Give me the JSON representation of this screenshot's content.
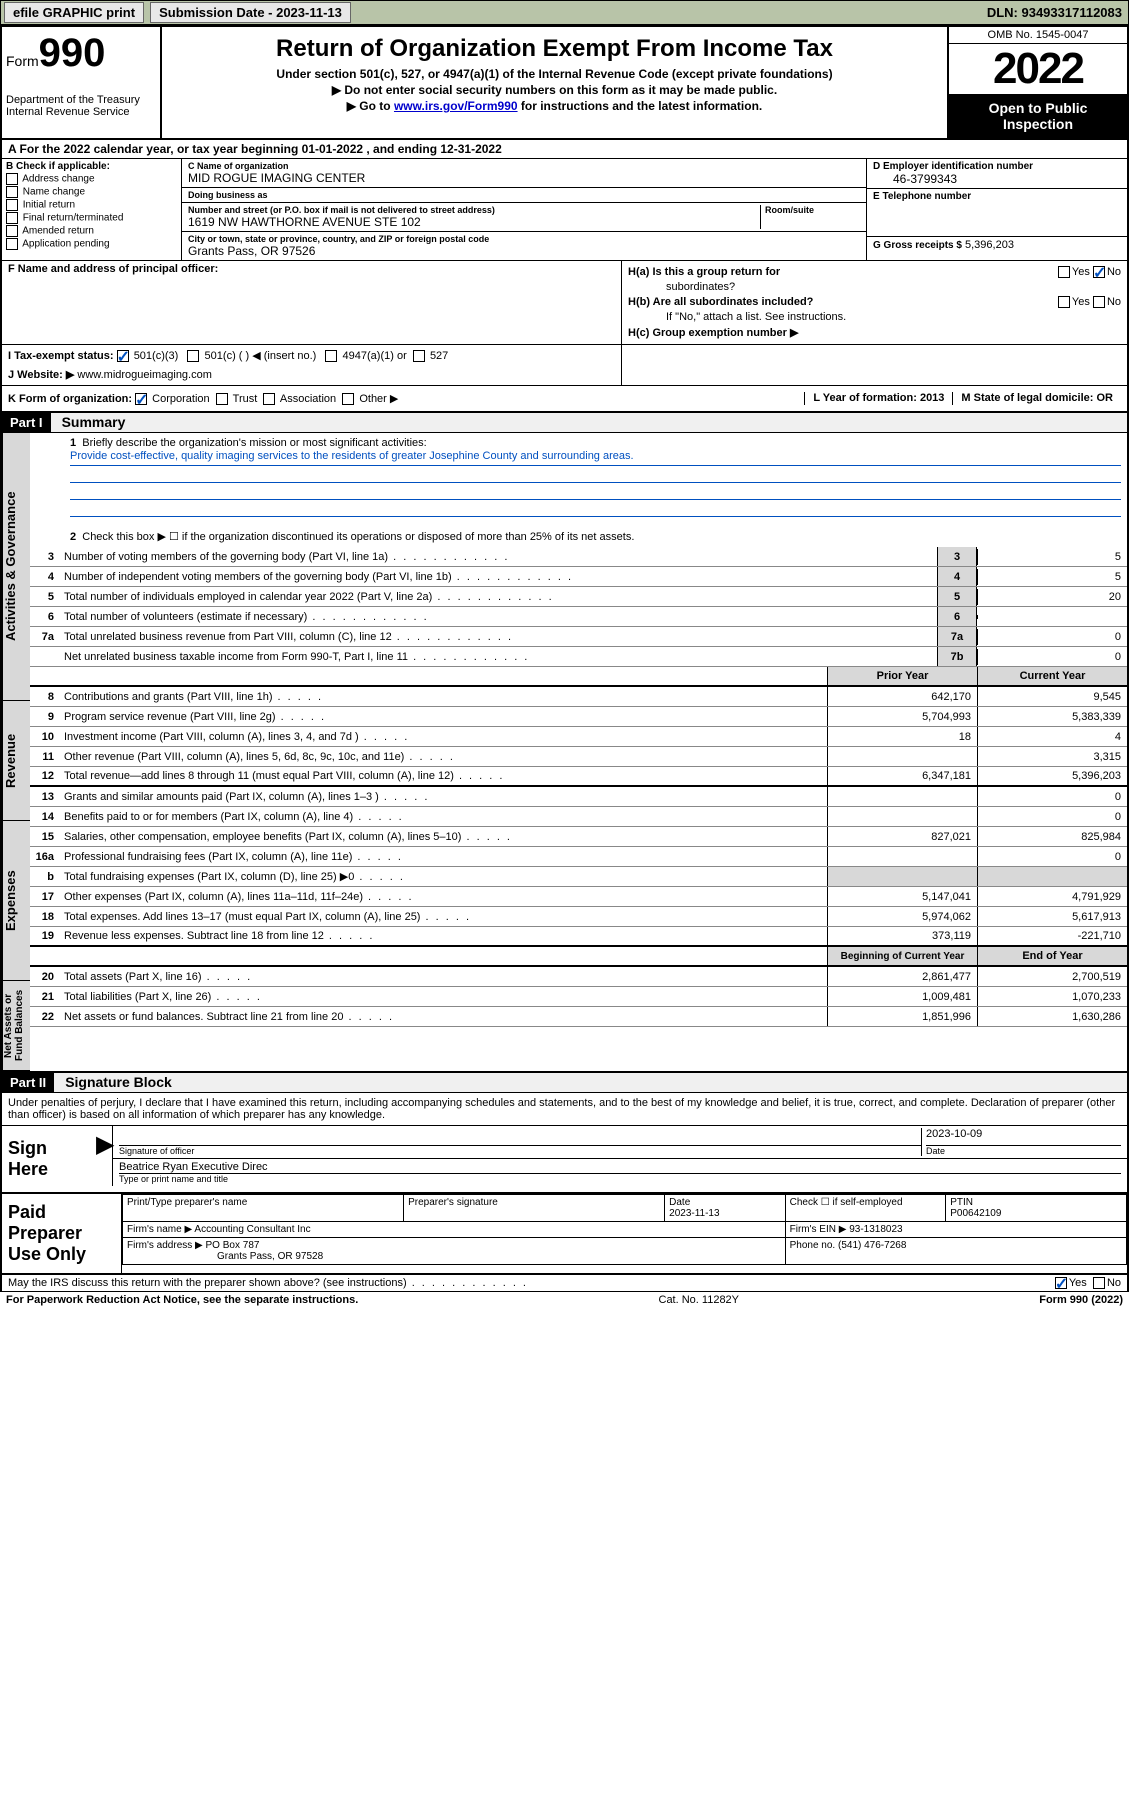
{
  "topbar": {
    "efile": "efile GRAPHIC print",
    "subdate_label": "Submission Date - 2023-11-13",
    "dln": "DLN: 93493317112083"
  },
  "header": {
    "form_label": "Form",
    "form_num": "990",
    "dept": "Department of the Treasury",
    "irs": "Internal Revenue Service",
    "title": "Return of Organization Exempt From Income Tax",
    "subtitle": "Under section 501(c), 527, or 4947(a)(1) of the Internal Revenue Code (except private foundations)",
    "arrow1": "▶ Do not enter social security numbers on this form as it may be made public.",
    "arrow2_pre": "▶ Go to ",
    "arrow2_link": "www.irs.gov/Form990",
    "arrow2_post": " for instructions and the latest information.",
    "omb": "OMB No. 1545-0047",
    "year": "2022",
    "open1": "Open to Public",
    "open2": "Inspection"
  },
  "row_a": "A For the 2022 calendar year, or tax year beginning 01-01-2022   , and ending 12-31-2022",
  "box_b": {
    "label": "B Check if applicable:",
    "items": [
      "Address change",
      "Name change",
      "Initial return",
      "Final return/terminated",
      "Amended return",
      "Application pending"
    ]
  },
  "box_c": {
    "name_label": "C Name of organization",
    "name": "MID ROGUE IMAGING CENTER",
    "dba_label": "Doing business as",
    "dba": "",
    "addr_label": "Number and street (or P.O. box if mail is not delivered to street address)",
    "room_label": "Room/suite",
    "addr": "1619 NW HAWTHORNE AVENUE STE 102",
    "city_label": "City or town, state or province, country, and ZIP or foreign postal code",
    "city": "Grants Pass, OR  97526"
  },
  "box_d": {
    "label": "D Employer identification number",
    "val": "46-3799343"
  },
  "box_e": {
    "label": "E Telephone number",
    "val": ""
  },
  "box_g": {
    "label": "G Gross receipts $",
    "val": "5,396,203"
  },
  "box_f": {
    "label": "F Name and address of principal officer:"
  },
  "box_h": {
    "ha": "H(a)  Is this a group return for",
    "ha2": "subordinates?",
    "hb": "H(b)  Are all subordinates included?",
    "hb_note": "If \"No,\" attach a list. See instructions.",
    "hc": "H(c)  Group exemption number ▶",
    "yes": "Yes",
    "no": "No"
  },
  "box_i": {
    "label": "I   Tax-exempt status:",
    "opt1": "501(c)(3)",
    "opt2": "501(c) (  ) ◀ (insert no.)",
    "opt3": "4947(a)(1) or",
    "opt4": "527"
  },
  "box_j": {
    "label": "J   Website: ▶",
    "val": "www.midrogueimaging.com"
  },
  "box_k": {
    "label": "K Form of organization:",
    "opts": [
      "Corporation",
      "Trust",
      "Association",
      "Other ▶"
    ]
  },
  "box_l": {
    "label": "L Year of formation: 2013"
  },
  "box_m": {
    "label": "M State of legal domicile: OR"
  },
  "part1": {
    "header": "Part I",
    "title": "Summary",
    "line1": "Briefly describe the organization's mission or most significant activities:",
    "mission": "Provide cost-effective, quality imaging services to the residents of greater Josephine County and surrounding areas.",
    "line2": "Check this box ▶ ☐ if the organization discontinued its operations or disposed of more than 25% of its net assets.",
    "rows_gov": [
      {
        "n": "3",
        "d": "Number of voting members of the governing body (Part VI, line 1a)",
        "box": "3",
        "v": "5"
      },
      {
        "n": "4",
        "d": "Number of independent voting members of the governing body (Part VI, line 1b)",
        "box": "4",
        "v": "5"
      },
      {
        "n": "5",
        "d": "Total number of individuals employed in calendar year 2022 (Part V, line 2a)",
        "box": "5",
        "v": "20"
      },
      {
        "n": "6",
        "d": "Total number of volunteers (estimate if necessary)",
        "box": "6",
        "v": ""
      },
      {
        "n": "7a",
        "d": "Total unrelated business revenue from Part VIII, column (C), line 12",
        "box": "7a",
        "v": "0"
      },
      {
        "n": "",
        "d": "Net unrelated business taxable income from Form 990-T, Part I, line 11",
        "box": "7b",
        "v": "0"
      }
    ],
    "hdr_prior": "Prior Year",
    "hdr_current": "Current Year",
    "rows_rev": [
      {
        "n": "8",
        "d": "Contributions and grants (Part VIII, line 1h)",
        "p": "642,170",
        "c": "9,545"
      },
      {
        "n": "9",
        "d": "Program service revenue (Part VIII, line 2g)",
        "p": "5,704,993",
        "c": "5,383,339"
      },
      {
        "n": "10",
        "d": "Investment income (Part VIII, column (A), lines 3, 4, and 7d )",
        "p": "18",
        "c": "4"
      },
      {
        "n": "11",
        "d": "Other revenue (Part VIII, column (A), lines 5, 6d, 8c, 9c, 10c, and 11e)",
        "p": "",
        "c": "3,315"
      },
      {
        "n": "12",
        "d": "Total revenue—add lines 8 through 11 (must equal Part VIII, column (A), line 12)",
        "p": "6,347,181",
        "c": "5,396,203"
      }
    ],
    "rows_exp": [
      {
        "n": "13",
        "d": "Grants and similar amounts paid (Part IX, column (A), lines 1–3 )",
        "p": "",
        "c": "0"
      },
      {
        "n": "14",
        "d": "Benefits paid to or for members (Part IX, column (A), line 4)",
        "p": "",
        "c": "0"
      },
      {
        "n": "15",
        "d": "Salaries, other compensation, employee benefits (Part IX, column (A), lines 5–10)",
        "p": "827,021",
        "c": "825,984"
      },
      {
        "n": "16a",
        "d": "Professional fundraising fees (Part IX, column (A), line 11e)",
        "p": "",
        "c": "0"
      },
      {
        "n": "b",
        "d": "Total fundraising expenses (Part IX, column (D), line 25) ▶0",
        "p": "SHADE",
        "c": "SHADE"
      },
      {
        "n": "17",
        "d": "Other expenses (Part IX, column (A), lines 11a–11d, 11f–24e)",
        "p": "5,147,041",
        "c": "4,791,929"
      },
      {
        "n": "18",
        "d": "Total expenses. Add lines 13–17 (must equal Part IX, column (A), line 25)",
        "p": "5,974,062",
        "c": "5,617,913"
      },
      {
        "n": "19",
        "d": "Revenue less expenses. Subtract line 18 from line 12",
        "p": "373,119",
        "c": "-221,710"
      }
    ],
    "hdr_beg": "Beginning of Current Year",
    "hdr_end": "End of Year",
    "rows_net": [
      {
        "n": "20",
        "d": "Total assets (Part X, line 16)",
        "p": "2,861,477",
        "c": "2,700,519"
      },
      {
        "n": "21",
        "d": "Total liabilities (Part X, line 26)",
        "p": "1,009,481",
        "c": "1,070,233"
      },
      {
        "n": "22",
        "d": "Net assets or fund balances. Subtract line 21 from line 20",
        "p": "1,851,996",
        "c": "1,630,286"
      }
    ],
    "side1": "Activities & Governance",
    "side2": "Revenue",
    "side3": "Expenses",
    "side4": "Net Assets or Fund Balances"
  },
  "part2": {
    "header": "Part II",
    "title": "Signature Block",
    "penalty": "Under penalties of perjury, I declare that I have examined this return, including accompanying schedules and statements, and to the best of my knowledge and belief, it is true, correct, and complete. Declaration of preparer (other than officer) is based on all information of which preparer has any knowledge.",
    "sign_here": "Sign Here",
    "sig_officer": "Signature of officer",
    "sig_date": "Date",
    "sig_date_val": "2023-10-09",
    "sig_name": "Beatrice Ryan  Executive Direc",
    "sig_name_lbl": "Type or print name and title",
    "paid": "Paid Preparer Use Only",
    "prep_name_lbl": "Print/Type preparer's name",
    "prep_sig_lbl": "Preparer's signature",
    "prep_date_lbl": "Date",
    "prep_date": "2023-11-13",
    "prep_check": "Check ☐ if self-employed",
    "ptin_lbl": "PTIN",
    "ptin": "P00642109",
    "firm_name_lbl": "Firm's name    ▶",
    "firm_name": "Accounting Consultant Inc",
    "firm_ein_lbl": "Firm's EIN ▶",
    "firm_ein": "93-1318023",
    "firm_addr_lbl": "Firm's address ▶",
    "firm_addr1": "PO Box 787",
    "firm_addr2": "Grants Pass, OR  97528",
    "phone_lbl": "Phone no.",
    "phone": "(541) 476-7268",
    "may_irs": "May the IRS discuss this return with the preparer shown above? (see instructions)",
    "yes": "Yes",
    "no": "No"
  },
  "footer": {
    "pra": "For Paperwork Reduction Act Notice, see the separate instructions.",
    "cat": "Cat. No. 11282Y",
    "form": "Form 990 (2022)"
  }
}
